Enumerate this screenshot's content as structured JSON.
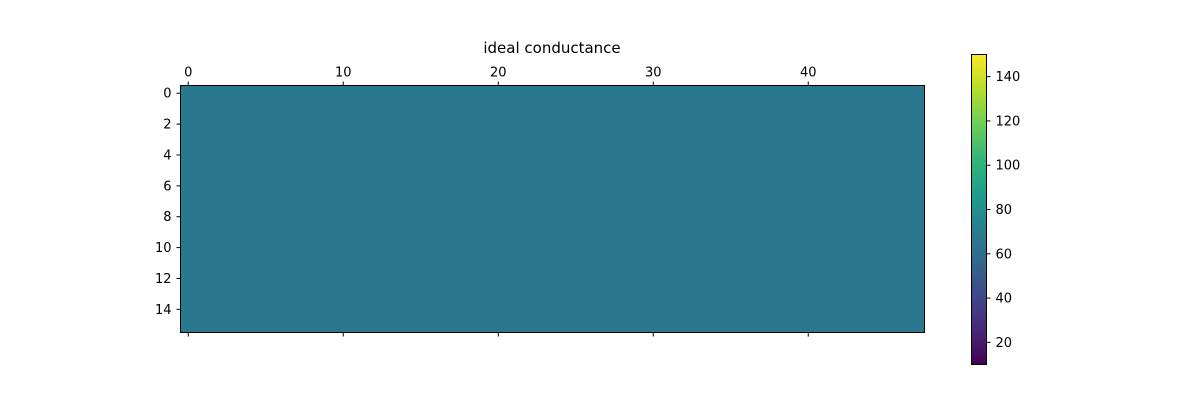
{
  "chart_data": {
    "type": "heatmap",
    "title": "ideal conductance",
    "rows": 16,
    "cols": 48,
    "fill_value": 70,
    "fill_color": "#2a788e",
    "colormap": "viridis",
    "x_axis_position": "top",
    "x_ticks": [
      0,
      10,
      20,
      30,
      40
    ],
    "y_ticks": [
      0,
      2,
      4,
      6,
      8,
      10,
      12,
      14
    ],
    "colorbar": {
      "vmin": 10,
      "vmax": 150,
      "ticks": [
        20,
        40,
        60,
        80,
        100,
        120,
        140
      ],
      "stops": [
        "#440154",
        "#482878",
        "#3e4989",
        "#31688e",
        "#26828e",
        "#1f9e89",
        "#35b779",
        "#6ece58",
        "#b5de2b",
        "#fde725"
      ]
    },
    "grid": false
  }
}
